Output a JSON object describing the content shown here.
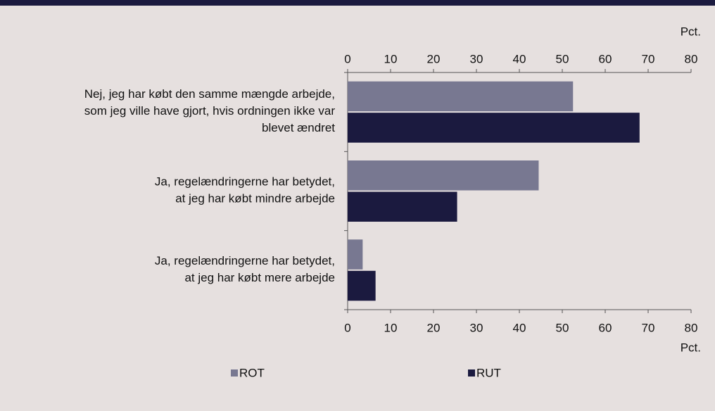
{
  "chart_data": {
    "type": "bar",
    "orientation": "horizontal",
    "x_label": "Pct.",
    "categories": [
      "Nej, jeg har købt den samme mængde arbejde,\nsom jeg ville have gjort, hvis ordningen ikke var\nblevet ændret",
      "Ja, regelændringerne har betydet,\nat jeg har købt mindre arbejde",
      "Ja, regelændringerne har betydet,\nat jeg har købt mere arbejde"
    ],
    "series": [
      {
        "name": "ROT",
        "color": "#787891",
        "values": [
          52.5,
          44.5,
          3.5
        ]
      },
      {
        "name": "RUT",
        "color": "#1b1a3f",
        "values": [
          68,
          25.5,
          6.5
        ]
      }
    ],
    "xlim": [
      0,
      80
    ],
    "xticks": [
      0,
      10,
      20,
      30,
      40,
      50,
      60,
      70,
      80
    ],
    "grid": false,
    "legend": "bottom"
  }
}
